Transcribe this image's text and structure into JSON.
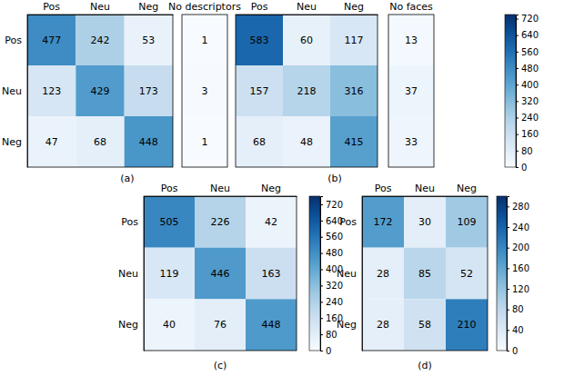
{
  "chart_data": [
    {
      "type": "heatmap",
      "title": "(a)",
      "x": [
        "Pos",
        "Neu",
        "Neg"
      ],
      "y": [
        "Pos",
        "Neu",
        "Neg"
      ],
      "cells": [
        [
          477,
          242,
          53
        ],
        [
          123,
          429,
          173
        ],
        [
          47,
          68,
          448
        ]
      ],
      "data_labels": true,
      "extra_column": {
        "label": "No descriptors",
        "values": [
          1,
          3,
          1
        ]
      },
      "colorbar": {
        "range": [
          0,
          740
        ]
      }
    },
    {
      "type": "heatmap",
      "title": "(b)",
      "x": [
        "Pos",
        "Neu",
        "Neg"
      ],
      "tick_labels": "x",
      "cells": [
        [
          583,
          60,
          117
        ],
        [
          157,
          218,
          316
        ],
        [
          68,
          48,
          415
        ]
      ],
      "data_labels": true,
      "extra_column": {
        "label": "No faces",
        "values": [
          13,
          37,
          33
        ]
      },
      "colorbar": {
        "range": [
          0,
          740
        ],
        "ticks": [
          0,
          80,
          160,
          240,
          320,
          400,
          480,
          560,
          640,
          720
        ]
      }
    },
    {
      "type": "heatmap",
      "title": "(c)",
      "x": [
        "Pos",
        "Neu",
        "Neg"
      ],
      "y": [
        "Pos",
        "Neu",
        "Neg"
      ],
      "cells": [
        [
          505,
          226,
          42
        ],
        [
          119,
          446,
          163
        ],
        [
          40,
          76,
          448
        ]
      ],
      "data_labels": true,
      "colorbar": {
        "range": [
          0,
          760
        ],
        "ticks": [
          0,
          80,
          160,
          240,
          320,
          400,
          480,
          560,
          640,
          720
        ]
      }
    },
    {
      "type": "heatmap",
      "title": "(d)",
      "x": [
        "Pos",
        "Neu",
        "Neg"
      ],
      "y": [
        "Pos",
        "Neu",
        "Neg"
      ],
      "cells": [
        [
          172,
          30,
          109
        ],
        [
          28,
          85,
          52
        ],
        [
          28,
          58,
          210
        ]
      ],
      "data_labels": true,
      "colorbar": {
        "range": [
          0,
          300
        ],
        "ticks": [
          0,
          40,
          80,
          120,
          160,
          200,
          240,
          280
        ]
      }
    }
  ]
}
